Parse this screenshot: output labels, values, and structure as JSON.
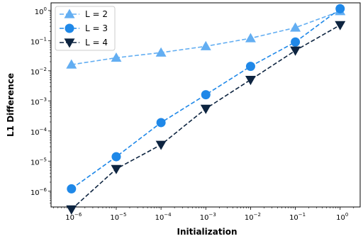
{
  "chart_data": {
    "type": "line",
    "xlabel": "Initialization",
    "ylabel": "L1 Difference",
    "xscale": "log",
    "yscale": "log",
    "xlim": [
      3.5e-07,
      2.8
    ],
    "ylim": [
      3e-07,
      1.8
    ],
    "grid": false,
    "legend_position": "top-left",
    "x": [
      1e-06,
      1e-05,
      0.0001,
      0.001,
      0.01,
      0.1,
      1
    ],
    "xticks": [
      {
        "value": 1e-06,
        "base": "10",
        "exp": "−6"
      },
      {
        "value": 1e-05,
        "base": "10",
        "exp": "−5"
      },
      {
        "value": 0.0001,
        "base": "10",
        "exp": "−4"
      },
      {
        "value": 0.001,
        "base": "10",
        "exp": "−3"
      },
      {
        "value": 0.01,
        "base": "10",
        "exp": "−2"
      },
      {
        "value": 0.1,
        "base": "10",
        "exp": "−1"
      },
      {
        "value": 1,
        "base": "10",
        "exp": "0"
      }
    ],
    "yticks": [
      {
        "value": 1e-06,
        "base": "10",
        "exp": "−6"
      },
      {
        "value": 1e-05,
        "base": "10",
        "exp": "−5"
      },
      {
        "value": 0.0001,
        "base": "10",
        "exp": "−4"
      },
      {
        "value": 0.001,
        "base": "10",
        "exp": "−3"
      },
      {
        "value": 0.01,
        "base": "10",
        "exp": "−2"
      },
      {
        "value": 0.1,
        "base": "10",
        "exp": "−1"
      },
      {
        "value": 1,
        "base": "10",
        "exp": "0"
      }
    ],
    "series": [
      {
        "name": "L = 2",
        "marker": "triangle-up",
        "color": "#63aef2",
        "values": [
          0.016,
          0.027,
          0.04,
          0.065,
          0.12,
          0.27,
          0.95
        ]
      },
      {
        "name": "L = 3",
        "marker": "circle",
        "color": "#1f88e8",
        "values": [
          1.2e-06,
          1.4e-05,
          0.00019,
          0.0016,
          0.014,
          0.09,
          1.15
        ]
      },
      {
        "name": "L = 4",
        "marker": "triangle-down",
        "color": "#0d2440",
        "values": [
          2.5e-07,
          5.5e-06,
          3.5e-05,
          0.00055,
          0.005,
          0.047,
          0.33
        ]
      }
    ]
  }
}
